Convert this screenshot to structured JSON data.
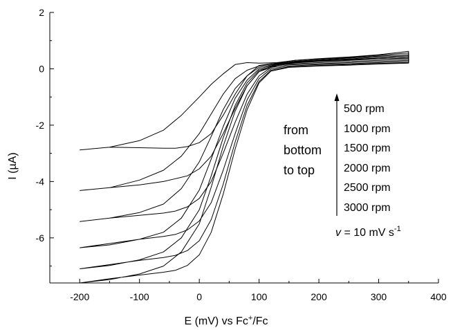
{
  "chart_data": {
    "type": "line",
    "xlabel": {
      "pre": "E (mV) vs Fc",
      "sup": "+",
      "post": "/Fc"
    },
    "ylabel": {
      "pre": "I (",
      "mu": "µ",
      "post": "A)"
    },
    "xlim": [
      -250,
      400
    ],
    "ylim": [
      -7.6,
      2
    ],
    "x_ticks": [
      -200,
      -100,
      0,
      100,
      200,
      300,
      400
    ],
    "y_ticks": [
      -6,
      -4,
      -2,
      0,
      2
    ],
    "grid": false,
    "legend_text": [
      "from",
      "bottom",
      "to top"
    ],
    "series_labels": [
      "500 rpm",
      "1000 rpm",
      "1500 rpm",
      "2000 rpm",
      "2500 rpm",
      "3000 rpm"
    ],
    "rate_label": {
      "v": "v",
      "eq": " = 10 mV s",
      "sup": "-1"
    },
    "series": [
      {
        "rpm": 500,
        "forward": [
          [
            -200,
            -2.88
          ],
          [
            -150,
            -2.78
          ],
          [
            -100,
            -2.55
          ],
          [
            -60,
            -2.18
          ],
          [
            -30,
            -1.65
          ],
          [
            0,
            -1.0
          ],
          [
            20,
            -0.55
          ],
          [
            40,
            -0.18
          ],
          [
            60,
            0.15
          ],
          [
            80,
            0.22
          ],
          [
            100,
            0.2
          ],
          [
            130,
            0.22
          ],
          [
            160,
            0.3
          ],
          [
            200,
            0.36
          ],
          [
            250,
            0.42
          ],
          [
            300,
            0.5
          ],
          [
            350,
            0.62
          ]
        ],
        "reverse": [
          [
            350,
            0.42
          ],
          [
            300,
            0.38
          ],
          [
            250,
            0.33
          ],
          [
            200,
            0.28
          ],
          [
            150,
            0.22
          ],
          [
            120,
            0.18
          ],
          [
            100,
            0.12
          ],
          [
            80,
            -0.25
          ],
          [
            60,
            -0.9
          ],
          [
            40,
            -1.65
          ],
          [
            20,
            -2.3
          ],
          [
            0,
            -2.62
          ],
          [
            -20,
            -2.76
          ],
          [
            -40,
            -2.82
          ],
          [
            -60,
            -2.82
          ],
          [
            -100,
            -2.8
          ],
          [
            -150,
            -2.78
          ],
          [
            -200,
            -2.88
          ]
        ]
      },
      {
        "rpm": 1000,
        "forward": [
          [
            -200,
            -4.32
          ],
          [
            -150,
            -4.22
          ],
          [
            -100,
            -3.95
          ],
          [
            -60,
            -3.6
          ],
          [
            -30,
            -3.1
          ],
          [
            0,
            -2.3
          ],
          [
            20,
            -1.6
          ],
          [
            40,
            -0.9
          ],
          [
            60,
            -0.35
          ],
          [
            80,
            -0.05
          ],
          [
            100,
            0.1
          ],
          [
            130,
            0.2
          ],
          [
            160,
            0.3
          ],
          [
            200,
            0.35
          ],
          [
            250,
            0.4
          ],
          [
            300,
            0.48
          ],
          [
            350,
            0.56
          ]
        ],
        "reverse": [
          [
            350,
            0.35
          ],
          [
            300,
            0.3
          ],
          [
            250,
            0.26
          ],
          [
            200,
            0.22
          ],
          [
            150,
            0.17
          ],
          [
            120,
            0.1
          ],
          [
            100,
            -0.1
          ],
          [
            80,
            -0.6
          ],
          [
            60,
            -1.4
          ],
          [
            40,
            -2.3
          ],
          [
            20,
            -3.1
          ],
          [
            0,
            -3.55
          ],
          [
            -20,
            -3.8
          ],
          [
            -40,
            -3.9
          ],
          [
            -60,
            -4.0
          ],
          [
            -100,
            -4.12
          ],
          [
            -150,
            -4.22
          ],
          [
            -200,
            -4.32
          ]
        ]
      },
      {
        "rpm": 1500,
        "forward": [
          [
            -200,
            -5.42
          ],
          [
            -150,
            -5.3
          ],
          [
            -100,
            -5.1
          ],
          [
            -60,
            -4.8
          ],
          [
            -30,
            -4.25
          ],
          [
            0,
            -3.3
          ],
          [
            20,
            -2.4
          ],
          [
            40,
            -1.45
          ],
          [
            60,
            -0.7
          ],
          [
            80,
            -0.25
          ],
          [
            100,
            0.05
          ],
          [
            130,
            0.18
          ],
          [
            160,
            0.27
          ],
          [
            200,
            0.32
          ],
          [
            250,
            0.38
          ],
          [
            300,
            0.45
          ],
          [
            350,
            0.5
          ]
        ],
        "reverse": [
          [
            350,
            0.3
          ],
          [
            300,
            0.26
          ],
          [
            250,
            0.22
          ],
          [
            200,
            0.18
          ],
          [
            150,
            0.14
          ],
          [
            120,
            0.05
          ],
          [
            100,
            -0.25
          ],
          [
            80,
            -0.9
          ],
          [
            60,
            -1.9
          ],
          [
            40,
            -3.0
          ],
          [
            20,
            -4.0
          ],
          [
            0,
            -4.6
          ],
          [
            -20,
            -4.9
          ],
          [
            -40,
            -5.05
          ],
          [
            -60,
            -5.12
          ],
          [
            -100,
            -5.2
          ],
          [
            -150,
            -5.3
          ],
          [
            -200,
            -5.42
          ]
        ]
      },
      {
        "rpm": 2000,
        "forward": [
          [
            -200,
            -6.35
          ],
          [
            -150,
            -6.25
          ],
          [
            -100,
            -6.05
          ],
          [
            -60,
            -5.8
          ],
          [
            -30,
            -5.3
          ],
          [
            0,
            -4.3
          ],
          [
            20,
            -3.2
          ],
          [
            40,
            -2.05
          ],
          [
            60,
            -1.05
          ],
          [
            80,
            -0.4
          ],
          [
            100,
            0.0
          ],
          [
            130,
            0.16
          ],
          [
            160,
            0.25
          ],
          [
            200,
            0.3
          ],
          [
            250,
            0.35
          ],
          [
            300,
            0.42
          ],
          [
            350,
            0.46
          ]
        ],
        "reverse": [
          [
            350,
            0.26
          ],
          [
            300,
            0.22
          ],
          [
            250,
            0.18
          ],
          [
            200,
            0.15
          ],
          [
            150,
            0.1
          ],
          [
            120,
            0.0
          ],
          [
            100,
            -0.35
          ],
          [
            80,
            -1.1
          ],
          [
            60,
            -2.3
          ],
          [
            40,
            -3.6
          ],
          [
            20,
            -4.75
          ],
          [
            0,
            -5.4
          ],
          [
            -20,
            -5.72
          ],
          [
            -40,
            -5.88
          ],
          [
            -60,
            -5.95
          ],
          [
            -100,
            -6.05
          ],
          [
            -150,
            -6.2
          ],
          [
            -200,
            -6.35
          ]
        ]
      },
      {
        "rpm": 2500,
        "forward": [
          [
            -200,
            -7.1
          ],
          [
            -150,
            -6.98
          ],
          [
            -100,
            -6.78
          ],
          [
            -60,
            -6.5
          ],
          [
            -30,
            -6.0
          ],
          [
            0,
            -5.0
          ],
          [
            20,
            -3.8
          ],
          [
            40,
            -2.45
          ],
          [
            60,
            -1.3
          ],
          [
            80,
            -0.5
          ],
          [
            100,
            -0.05
          ],
          [
            130,
            0.14
          ],
          [
            160,
            0.23
          ],
          [
            200,
            0.28
          ],
          [
            250,
            0.32
          ],
          [
            300,
            0.38
          ],
          [
            350,
            0.42
          ]
        ],
        "reverse": [
          [
            350,
            0.22
          ],
          [
            300,
            0.19
          ],
          [
            250,
            0.15
          ],
          [
            200,
            0.12
          ],
          [
            150,
            0.07
          ],
          [
            120,
            -0.05
          ],
          [
            100,
            -0.45
          ],
          [
            80,
            -1.3
          ],
          [
            60,
            -2.6
          ],
          [
            40,
            -4.1
          ],
          [
            20,
            -5.35
          ],
          [
            0,
            -6.1
          ],
          [
            -20,
            -6.45
          ],
          [
            -40,
            -6.62
          ],
          [
            -60,
            -6.7
          ],
          [
            -100,
            -6.8
          ],
          [
            -150,
            -6.95
          ],
          [
            -200,
            -7.1
          ]
        ]
      },
      {
        "rpm": 3000,
        "forward": [
          [
            -200,
            -7.6
          ],
          [
            -150,
            -7.48
          ],
          [
            -100,
            -7.28
          ],
          [
            -60,
            -7.0
          ],
          [
            -30,
            -6.5
          ],
          [
            0,
            -5.5
          ],
          [
            20,
            -4.2
          ],
          [
            40,
            -2.75
          ],
          [
            60,
            -1.5
          ],
          [
            80,
            -0.6
          ],
          [
            100,
            -0.1
          ],
          [
            130,
            0.12
          ],
          [
            160,
            0.21
          ],
          [
            200,
            0.26
          ],
          [
            250,
            0.3
          ],
          [
            300,
            0.35
          ],
          [
            350,
            0.38
          ]
        ],
        "reverse": [
          [
            350,
            0.2
          ],
          [
            300,
            0.17
          ],
          [
            250,
            0.13
          ],
          [
            200,
            0.1
          ],
          [
            150,
            0.05
          ],
          [
            120,
            -0.08
          ],
          [
            100,
            -0.5
          ],
          [
            80,
            -1.45
          ],
          [
            60,
            -2.85
          ],
          [
            40,
            -4.45
          ],
          [
            20,
            -5.8
          ],
          [
            0,
            -6.6
          ],
          [
            -20,
            -6.98
          ],
          [
            -40,
            -7.15
          ],
          [
            -60,
            -7.22
          ],
          [
            -100,
            -7.32
          ],
          [
            -150,
            -7.45
          ],
          [
            -200,
            -7.6
          ]
        ]
      }
    ]
  }
}
